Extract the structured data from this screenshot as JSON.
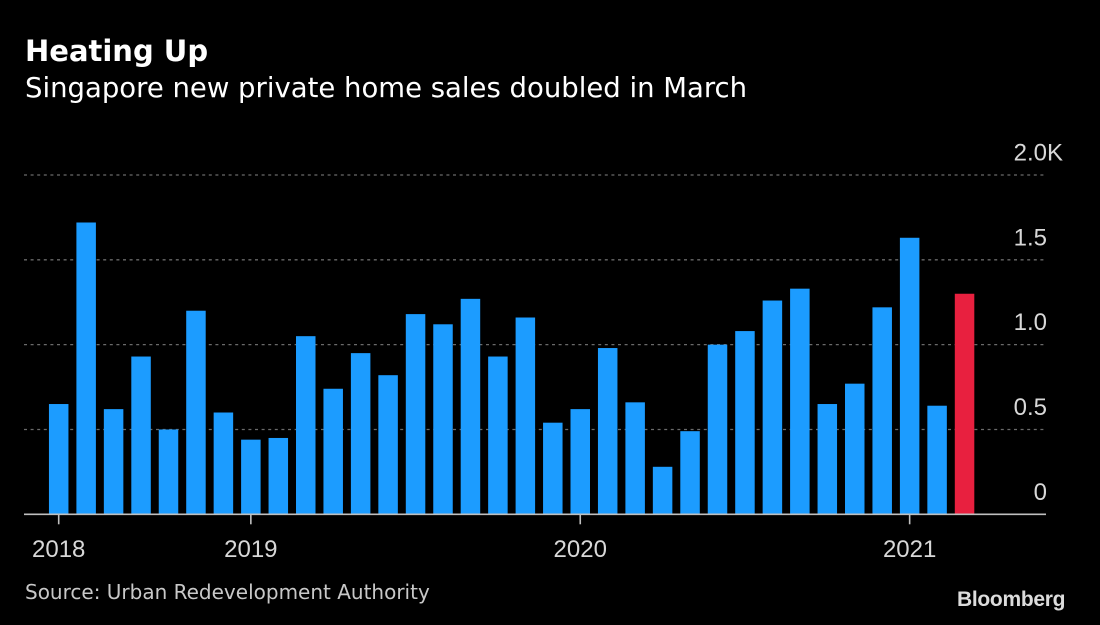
{
  "header": {
    "title": "Heating Up",
    "subtitle": "Singapore new private home sales doubled in March"
  },
  "footer": {
    "source": "Source: Urban Redevelopment Authority",
    "logo": "Bloomberg"
  },
  "colors": {
    "background": "#000000",
    "bar": "#1c9cff",
    "highlight": "#e8203f",
    "grid": "#6a6a6a",
    "axis": "#bfbfbf",
    "text": "#d8d8d8"
  },
  "chart_data": {
    "type": "bar",
    "title": "Heating Up",
    "subtitle": "Singapore new private home sales doubled in March",
    "xlabel": "",
    "ylabel": "",
    "unit": "thousand units",
    "categories": [
      "2018-06",
      "2018-07",
      "2018-08",
      "2018-09",
      "2018-10",
      "2018-11",
      "2018-12",
      "2019-01",
      "2019-02",
      "2019-03",
      "2019-04",
      "2019-05",
      "2019-06",
      "2019-07",
      "2019-08",
      "2019-09",
      "2019-10",
      "2019-11",
      "2019-12",
      "2020-01",
      "2020-02",
      "2020-03",
      "2020-04",
      "2020-05",
      "2020-06",
      "2020-07",
      "2020-08",
      "2020-09",
      "2020-10",
      "2020-11",
      "2020-12",
      "2021-01",
      "2021-02",
      "2021-03"
    ],
    "values": [
      0.65,
      1.72,
      0.62,
      0.93,
      0.5,
      1.2,
      0.6,
      0.44,
      0.45,
      1.05,
      0.74,
      0.95,
      0.82,
      1.18,
      1.12,
      1.27,
      0.93,
      1.16,
      0.54,
      0.62,
      0.98,
      0.66,
      0.28,
      0.49,
      1.0,
      1.08,
      1.26,
      1.33,
      0.65,
      0.77,
      1.22,
      1.63,
      0.64,
      1.3
    ],
    "highlight_index": 33,
    "ylim": [
      0,
      2.0
    ],
    "yticks": [
      {
        "value": 0,
        "label": "0"
      },
      {
        "value": 0.5,
        "label": "0.5"
      },
      {
        "value": 1.0,
        "label": "1.0"
      },
      {
        "value": 1.5,
        "label": "1.5"
      },
      {
        "value": 2.0,
        "label": "2.0K"
      }
    ],
    "xticks": [
      {
        "index": 0,
        "label": "2018"
      },
      {
        "index": 7,
        "label": "2019"
      },
      {
        "index": 19,
        "label": "2020"
      },
      {
        "index": 31,
        "label": "2021"
      }
    ],
    "grid": true,
    "legend": "none",
    "y_axis_position": "right"
  }
}
